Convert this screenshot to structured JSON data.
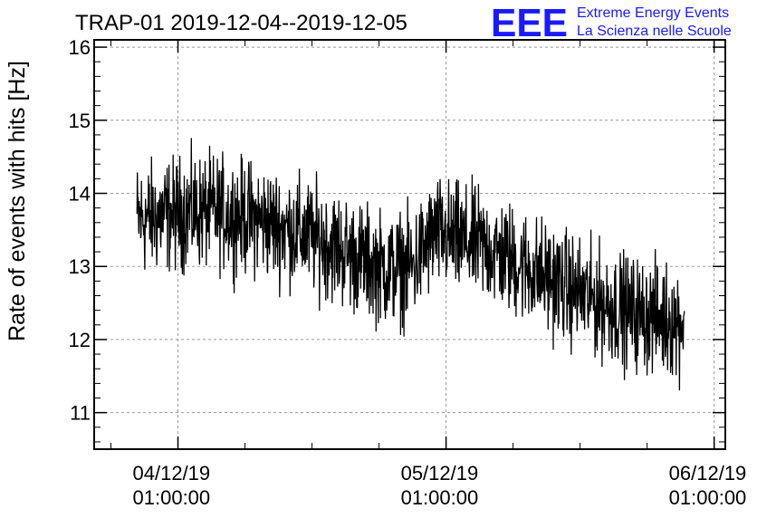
{
  "chart_data": {
    "type": "line",
    "title": "TRAP-01 2019-12-04--2019-12-05",
    "ylabel": "Rate of events with hits [Hz]",
    "xlabel": "",
    "ylim": [
      10.5,
      16.1
    ],
    "yticks": [
      11,
      12,
      13,
      14,
      15,
      16
    ],
    "xlim": [
      "2019-12-03 17:30:00",
      "2019-12-06 02:00:00"
    ],
    "xticks": [
      {
        "date": "04/12/19",
        "time": "01:00:00",
        "at": "2019-12-04 01:00:00"
      },
      {
        "date": "05/12/19",
        "time": "01:00:00",
        "at": "2019-12-05 01:00:00"
      },
      {
        "date": "06/12/19",
        "time": "01:00:00",
        "at": "2019-12-06 01:00:00"
      }
    ],
    "grid": true,
    "line_color": "#000000",
    "series": [
      {
        "x": [
          "2019-12-03 22:00",
          "2019-12-04 00:00",
          "2019-12-04 02:00",
          "2019-12-04 04:00",
          "2019-12-04 06:00",
          "2019-12-04 08:00",
          "2019-12-04 10:00",
          "2019-12-04 12:00",
          "2019-12-04 14:00",
          "2019-12-04 16:00",
          "2019-12-04 18:00",
          "2019-12-04 20:00",
          "2019-12-04 22:00",
          "2019-12-05 00:00",
          "2019-12-05 02:00",
          "2019-12-05 04:00",
          "2019-12-05 06:00",
          "2019-12-05 08:00",
          "2019-12-05 10:00",
          "2019-12-05 12:00",
          "2019-12-05 14:00",
          "2019-12-05 16:00",
          "2019-12-05 18:00",
          "2019-12-05 20:00",
          "2019-12-05 22:00"
        ],
        "values": [
          13.65,
          13.7,
          13.75,
          13.75,
          13.7,
          13.65,
          13.55,
          13.45,
          13.35,
          13.2,
          13.05,
          12.95,
          13.0,
          13.45,
          13.35,
          13.3,
          13.15,
          13.0,
          12.85,
          12.7,
          12.55,
          12.45,
          12.35,
          12.3,
          12.25
        ]
      }
    ]
  },
  "logo": {
    "mark": "EEE",
    "line1": "Extreme Energy Events",
    "line2": "La Scienza nelle Scuole"
  }
}
